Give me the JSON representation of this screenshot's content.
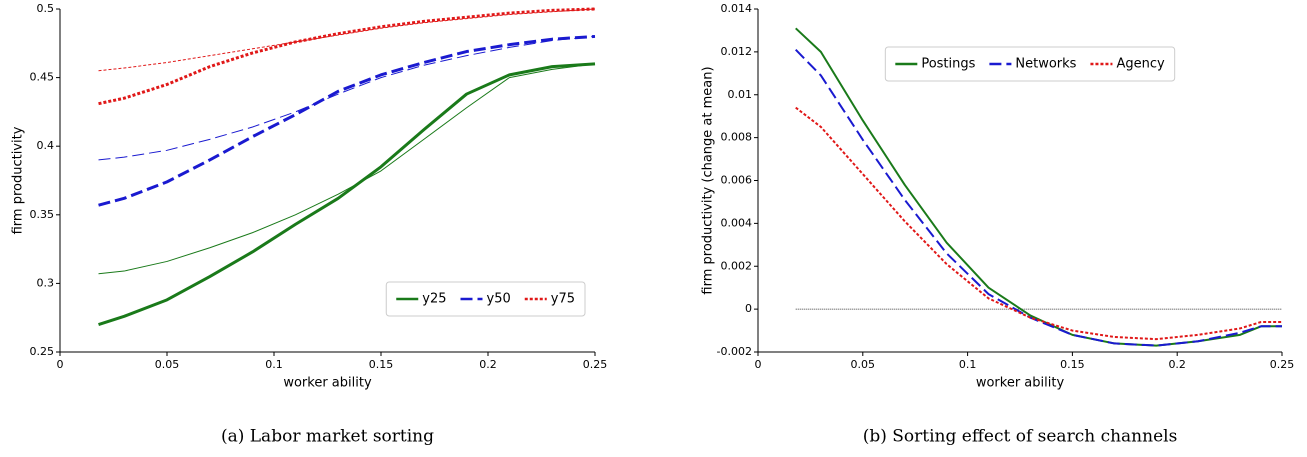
{
  "chart_data": [
    {
      "type": "line",
      "caption": "(a) Labor market sorting",
      "xlabel": "worker ability",
      "ylabel": "firm productivity",
      "x": [
        0.018,
        0.03,
        0.05,
        0.07,
        0.09,
        0.11,
        0.13,
        0.15,
        0.17,
        0.19,
        0.21,
        0.23,
        0.25
      ],
      "series": [
        {
          "color": "#1a7a1a",
          "dash": "solid",
          "linewidth": 1,
          "values": [
            0.307,
            0.309,
            0.316,
            0.326,
            0.337,
            0.35,
            0.365,
            0.382,
            0.405,
            0.428,
            0.45,
            0.456,
            0.46
          ]
        },
        {
          "color": "#1a1ad0",
          "dash": "dashed",
          "linewidth": 1,
          "values": [
            0.39,
            0.392,
            0.397,
            0.405,
            0.414,
            0.425,
            0.438,
            0.45,
            0.459,
            0.466,
            0.472,
            0.477,
            0.48
          ]
        },
        {
          "color": "#e01818",
          "dash": "dotted",
          "linewidth": 1,
          "values": [
            0.455,
            0.457,
            0.461,
            0.466,
            0.471,
            0.476,
            0.481,
            0.486,
            0.49,
            0.493,
            0.496,
            0.498,
            0.5
          ]
        },
        {
          "name": "y25",
          "color": "#1a7a1a",
          "dash": "solid",
          "linewidth": 3,
          "values": [
            0.27,
            0.276,
            0.288,
            0.305,
            0.323,
            0.343,
            0.362,
            0.385,
            0.412,
            0.438,
            0.452,
            0.458,
            0.46
          ]
        },
        {
          "name": "y50",
          "color": "#1a1ad0",
          "dash": "dashed",
          "linewidth": 3,
          "values": [
            0.357,
            0.362,
            0.374,
            0.39,
            0.407,
            0.423,
            0.44,
            0.452,
            0.461,
            0.469,
            0.474,
            0.478,
            0.48
          ]
        },
        {
          "name": "y75",
          "color": "#e01818",
          "dash": "dotted",
          "linewidth": 3,
          "values": [
            0.431,
            0.435,
            0.445,
            0.458,
            0.468,
            0.476,
            0.482,
            0.487,
            0.491,
            0.494,
            0.497,
            0.499,
            0.5
          ]
        }
      ],
      "xlim": [
        0,
        0.25
      ],
      "xticks": [
        0,
        0.05,
        0.1,
        0.15,
        0.2,
        0.25
      ],
      "ylim": [
        0.25,
        0.5
      ],
      "yticks": [
        0.25,
        0.3,
        0.35,
        0.4,
        0.45,
        0.5
      ],
      "legend": "lower right"
    },
    {
      "type": "line",
      "caption": "(b) Sorting effect of search channels",
      "xlabel": "worker ability",
      "ylabel": "firm productivity (change at mean)",
      "x": [
        0.018,
        0.03,
        0.05,
        0.07,
        0.09,
        0.11,
        0.13,
        0.15,
        0.17,
        0.19,
        0.21,
        0.23,
        0.24,
        0.25
      ],
      "series": [
        {
          "name": "Postings",
          "color": "#1a7a1a",
          "dash": "solid",
          "linewidth": 2,
          "values": [
            0.0131,
            0.012,
            0.0088,
            0.0058,
            0.0031,
            0.001,
            -0.0003,
            -0.0012,
            -0.0016,
            -0.0017,
            -0.0015,
            -0.0012,
            -0.0008,
            -0.0008
          ]
        },
        {
          "name": "Networks",
          "color": "#1a1ad0",
          "dash": "dashed",
          "linewidth": 2,
          "values": [
            0.0121,
            0.0109,
            0.0079,
            0.0051,
            0.0026,
            0.0007,
            -0.0004,
            -0.0012,
            -0.0016,
            -0.0017,
            -0.0015,
            -0.0011,
            -0.0008,
            -0.0008
          ]
        },
        {
          "name": "Agency",
          "color": "#e01818",
          "dash": "dotted",
          "linewidth": 2,
          "values": [
            0.0094,
            0.0085,
            0.0063,
            0.0041,
            0.0021,
            0.0005,
            -0.0004,
            -0.001,
            -0.0013,
            -0.0014,
            -0.0012,
            -0.0009,
            -0.0006,
            -0.0006
          ]
        }
      ],
      "hlines": [
        {
          "y": 0,
          "xlim": [
            0.018,
            0.25
          ]
        }
      ],
      "xlim": [
        0,
        0.25
      ],
      "xticks": [
        0,
        0.05,
        0.1,
        0.15,
        0.2,
        0.25
      ],
      "ylim": [
        -0.002,
        0.014
      ],
      "yticks": [
        -0.002,
        0,
        0.002,
        0.004,
        0.006,
        0.008,
        0.01,
        0.012,
        0.014
      ],
      "legend": "upper center"
    }
  ]
}
